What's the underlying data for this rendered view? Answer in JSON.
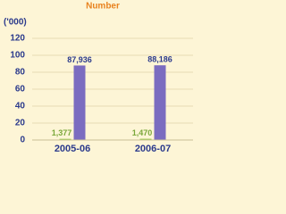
{
  "chart_data": {
    "type": "bar",
    "title": "Number",
    "y_label": "('000)",
    "categories": [
      "2005-06",
      "2006-07"
    ],
    "series": [
      {
        "color": "#9ccc4e",
        "label_color": "#7aa83a",
        "values": [
          1.377,
          1.47
        ],
        "value_labels": [
          "1,377",
          "1,470"
        ]
      },
      {
        "color": "#7b6cc0",
        "label_color": "#2b3a8c",
        "values": [
          87.936,
          88.186
        ],
        "value_labels": [
          "87,936",
          "88,186"
        ]
      }
    ],
    "ylim": [
      0,
      120
    ],
    "yticks": [
      0,
      20,
      40,
      60,
      80,
      100,
      120
    ],
    "grid": true
  }
}
